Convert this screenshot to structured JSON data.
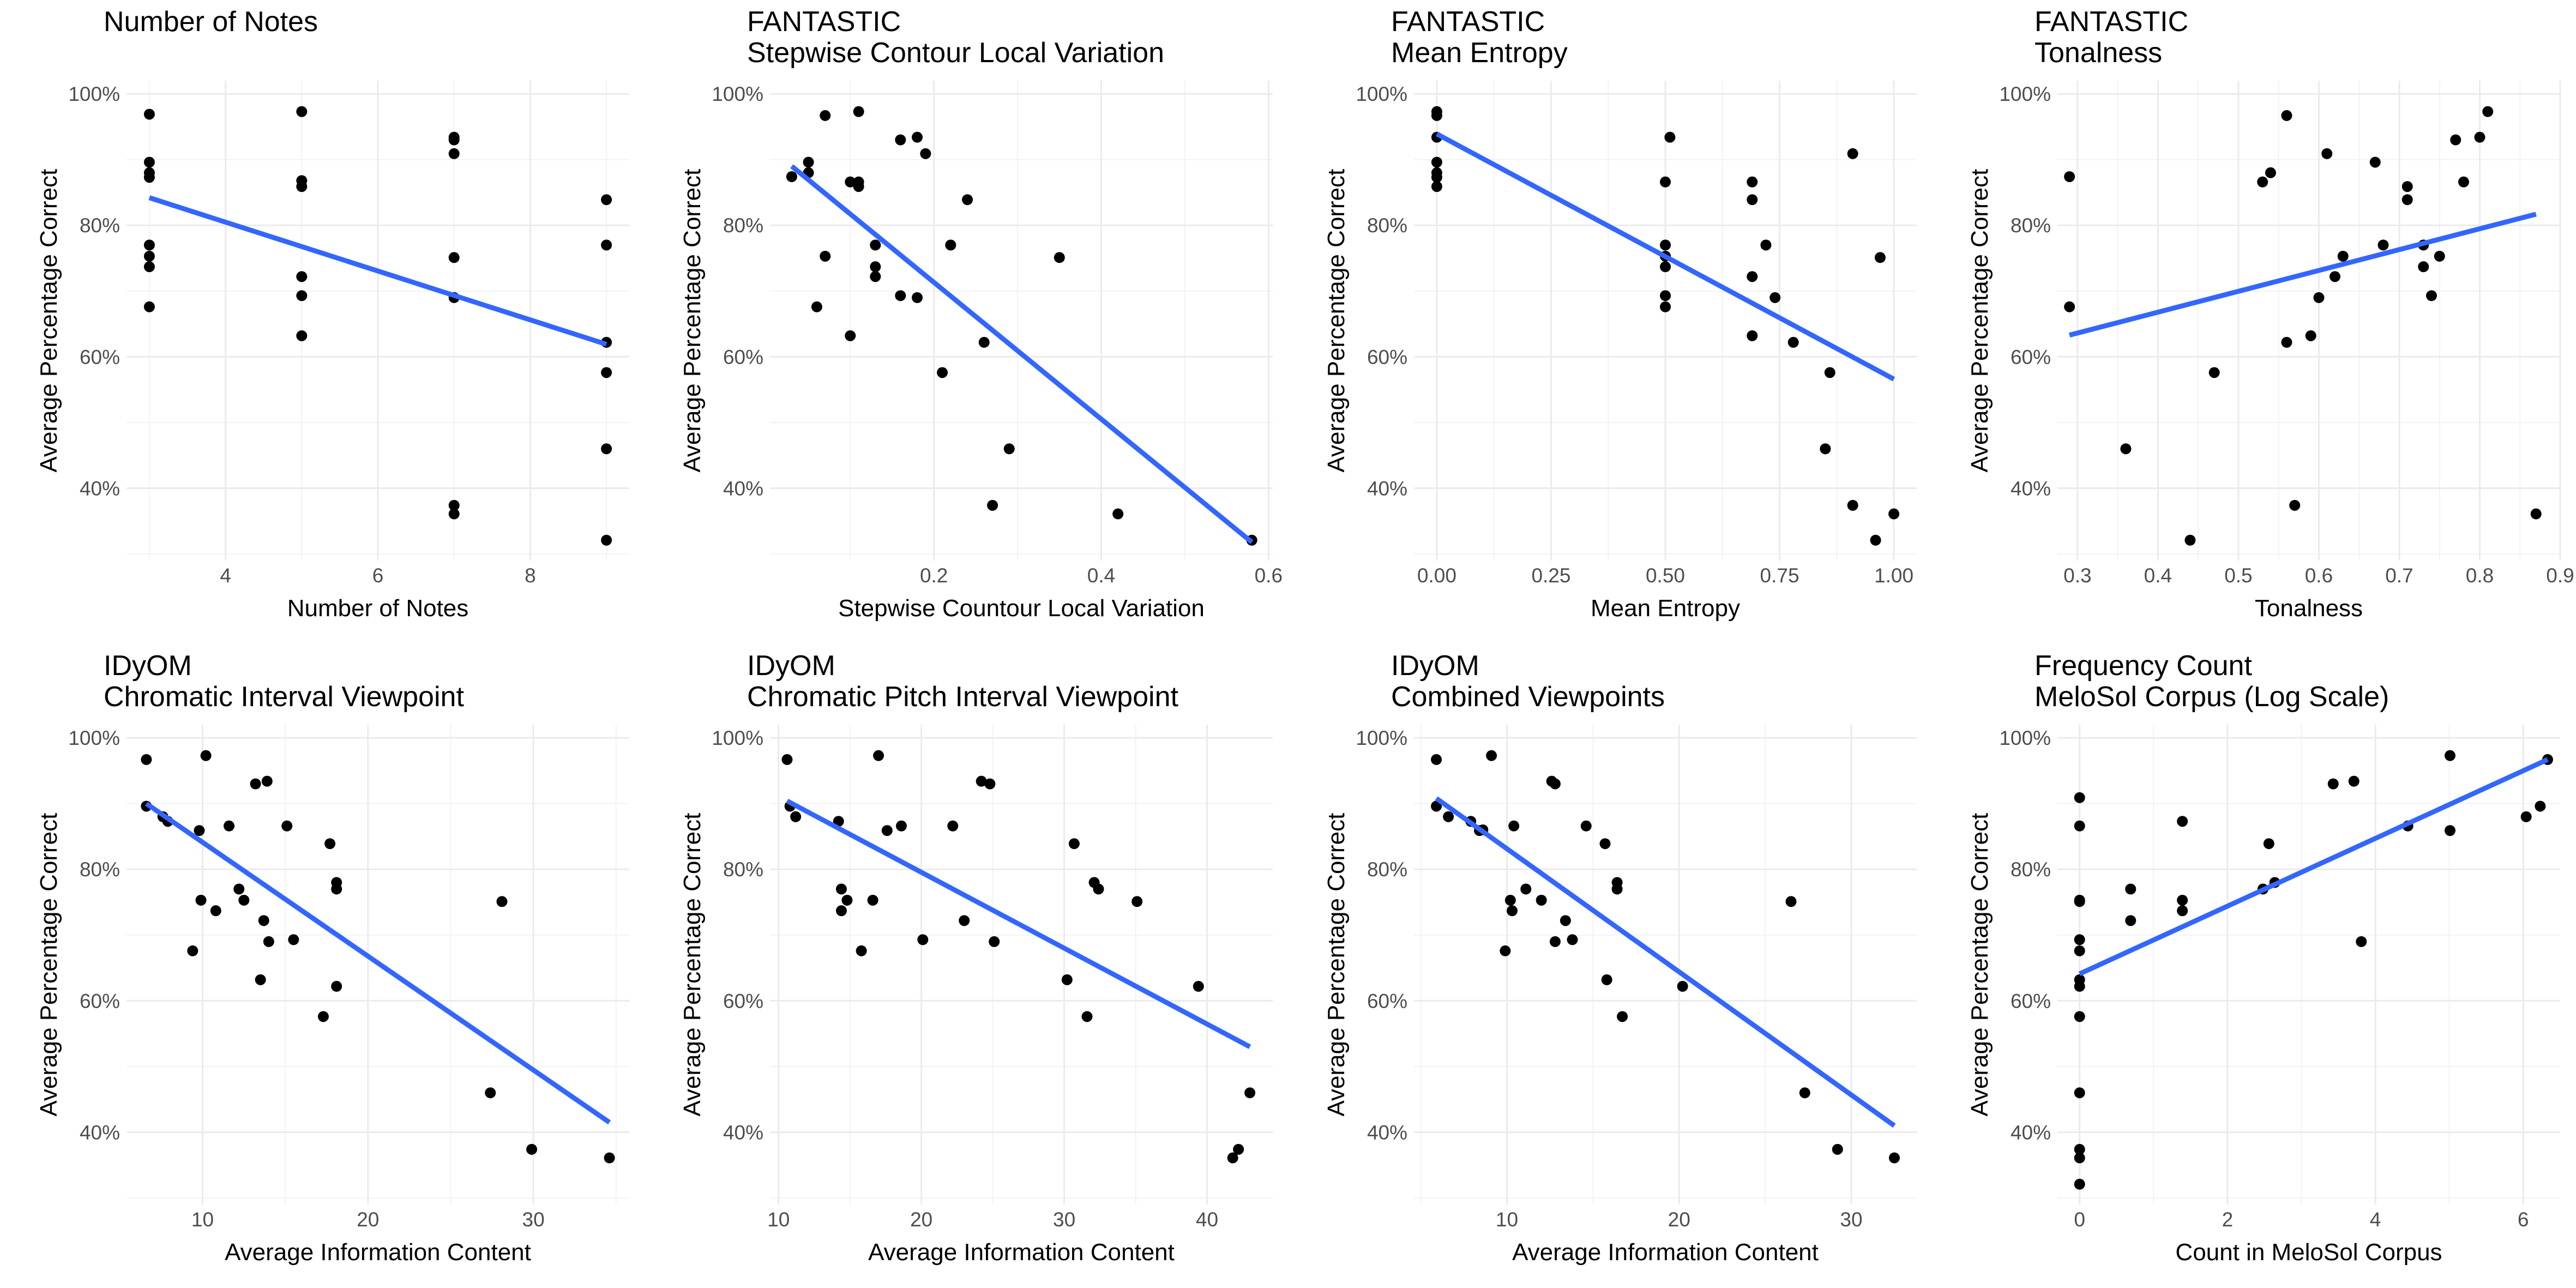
{
  "figure": {
    "y_label": "Average Percentage Correct",
    "y_ticks": [
      "40%",
      "60%",
      "80%",
      "100%"
    ],
    "fit_color": "#3366ff",
    "point_color": "#000000"
  },
  "chart_data": [
    {
      "type": "scatter",
      "title": "Number of Notes",
      "subtitle": "",
      "xlabel": "Number of Notes",
      "ylabel": "Average Percentage Correct",
      "xlim": [
        2.7,
        9.3
      ],
      "ylim": [
        29,
        102
      ],
      "x_ticks": [
        4,
        6,
        8
      ],
      "x_tick_labels": [
        "4",
        "6",
        "8"
      ],
      "y_ticks": [
        40,
        60,
        80,
        100
      ],
      "y_tick_labels": [
        "40%",
        "60%",
        "80%",
        "100%"
      ],
      "fit": {
        "x": [
          3,
          9
        ],
        "y": [
          84.2,
          61.9
        ]
      },
      "points": [
        [
          3,
          96.9
        ],
        [
          3,
          89.6
        ],
        [
          3,
          88.0
        ],
        [
          3,
          87.3
        ],
        [
          3,
          77.0
        ],
        [
          3,
          75.3
        ],
        [
          3,
          73.7
        ],
        [
          3,
          67.6
        ],
        [
          5,
          97.3
        ],
        [
          5,
          86.8
        ],
        [
          5,
          85.9
        ],
        [
          5,
          72.2
        ],
        [
          5,
          69.3
        ],
        [
          5,
          63.2
        ],
        [
          7,
          93.4
        ],
        [
          7,
          93.0
        ],
        [
          7,
          90.9
        ],
        [
          7,
          75.1
        ],
        [
          7,
          69.0
        ],
        [
          7,
          37.4
        ],
        [
          7,
          36.1
        ],
        [
          9,
          83.9
        ],
        [
          9,
          77.0
        ],
        [
          9,
          62.2
        ],
        [
          9,
          57.6
        ],
        [
          9,
          46.0
        ],
        [
          9,
          32.1
        ]
      ]
    },
    {
      "type": "scatter",
      "title": "FANTASTIC",
      "subtitle": "Stepwise Contour Local Variation",
      "xlabel": "Stepwise Countour Local Variation",
      "ylabel": "Average Percentage Correct",
      "xlim": [
        0.004,
        0.605
      ],
      "ylim": [
        29,
        102
      ],
      "x_ticks": [
        0.2,
        0.4,
        0.6
      ],
      "x_tick_labels": [
        "0.2",
        "0.4",
        "0.6"
      ],
      "y_ticks": [
        40,
        60,
        80,
        100
      ],
      "y_tick_labels": [
        "40%",
        "60%",
        "80%",
        "100%"
      ],
      "fit": {
        "x": [
          0.03,
          0.58
        ],
        "y": [
          89.0,
          31.8
        ]
      },
      "points": [
        [
          0.03,
          87.4
        ],
        [
          0.05,
          88.0
        ],
        [
          0.05,
          89.6
        ],
        [
          0.06,
          67.6
        ],
        [
          0.07,
          96.7
        ],
        [
          0.07,
          75.3
        ],
        [
          0.1,
          86.6
        ],
        [
          0.1,
          63.2
        ],
        [
          0.11,
          97.3
        ],
        [
          0.11,
          85.9
        ],
        [
          0.11,
          86.6
        ],
        [
          0.13,
          72.2
        ],
        [
          0.13,
          73.7
        ],
        [
          0.13,
          77.0
        ],
        [
          0.16,
          69.3
        ],
        [
          0.16,
          93.0
        ],
        [
          0.18,
          93.4
        ],
        [
          0.18,
          69.0
        ],
        [
          0.19,
          90.9
        ],
        [
          0.21,
          57.6
        ],
        [
          0.22,
          77.0
        ],
        [
          0.24,
          83.9
        ],
        [
          0.26,
          62.2
        ],
        [
          0.27,
          37.4
        ],
        [
          0.29,
          46.0
        ],
        [
          0.35,
          75.1
        ],
        [
          0.42,
          36.1
        ],
        [
          0.58,
          32.1
        ]
      ]
    },
    {
      "type": "scatter",
      "title": "FANTASTIC",
      "subtitle": "Mean Entropy",
      "xlabel": "Mean Entropy",
      "ylabel": "Average Percentage Correct",
      "xlim": [
        -0.05,
        1.05
      ],
      "ylim": [
        29,
        102
      ],
      "x_ticks": [
        0,
        0.25,
        0.5,
        0.75,
        1
      ],
      "x_tick_labels": [
        "0.00",
        "0.25",
        "0.50",
        "0.75",
        "1.00"
      ],
      "y_ticks": [
        40,
        60,
        80,
        100
      ],
      "y_tick_labels": [
        "40%",
        "60%",
        "80%",
        "100%"
      ],
      "fit": {
        "x": [
          0,
          1
        ],
        "y": [
          93.9,
          56.6
        ]
      },
      "points": [
        [
          0,
          97.3
        ],
        [
          0,
          96.7
        ],
        [
          0,
          93.4
        ],
        [
          0,
          89.6
        ],
        [
          0,
          88.0
        ],
        [
          0,
          87.3
        ],
        [
          0,
          85.9
        ],
        [
          0.5,
          86.6
        ],
        [
          0.5,
          77.0
        ],
        [
          0.5,
          75.3
        ],
        [
          0.5,
          73.7
        ],
        [
          0.5,
          69.3
        ],
        [
          0.5,
          67.6
        ],
        [
          0.51,
          93.4
        ],
        [
          0.69,
          86.6
        ],
        [
          0.69,
          83.9
        ],
        [
          0.69,
          72.2
        ],
        [
          0.69,
          63.2
        ],
        [
          0.72,
          77.0
        ],
        [
          0.74,
          69.0
        ],
        [
          0.78,
          62.2
        ],
        [
          0.85,
          46.0
        ],
        [
          0.86,
          57.6
        ],
        [
          0.91,
          90.9
        ],
        [
          0.91,
          37.4
        ],
        [
          0.96,
          32.1
        ],
        [
          0.97,
          75.1
        ],
        [
          1.0,
          36.1
        ]
      ]
    },
    {
      "type": "scatter",
      "title": "FANTASTIC",
      "subtitle": "Tonalness",
      "xlabel": "Tonalness",
      "ylabel": "Average Percentage Correct",
      "xlim": [
        0.275,
        0.9
      ],
      "ylim": [
        29,
        102
      ],
      "x_ticks": [
        0.3,
        0.4,
        0.5,
        0.6,
        0.7,
        0.8,
        0.9
      ],
      "x_tick_labels": [
        "0.3",
        "0.4",
        "0.5",
        "0.6",
        "0.7",
        "0.8",
        "0.9"
      ],
      "y_ticks": [
        40,
        60,
        80,
        100
      ],
      "y_tick_labels": [
        "40%",
        "60%",
        "80%",
        "100%"
      ],
      "fit": {
        "x": [
          0.29,
          0.87
        ],
        "y": [
          63.3,
          81.7
        ]
      },
      "points": [
        [
          0.29,
          87.4
        ],
        [
          0.29,
          67.6
        ],
        [
          0.36,
          46.0
        ],
        [
          0.44,
          32.1
        ],
        [
          0.47,
          57.6
        ],
        [
          0.53,
          86.6
        ],
        [
          0.54,
          88.0
        ],
        [
          0.56,
          96.7
        ],
        [
          0.56,
          62.2
        ],
        [
          0.57,
          37.4
        ],
        [
          0.59,
          63.2
        ],
        [
          0.6,
          69.0
        ],
        [
          0.61,
          90.9
        ],
        [
          0.62,
          72.2
        ],
        [
          0.63,
          75.3
        ],
        [
          0.67,
          89.6
        ],
        [
          0.68,
          77.0
        ],
        [
          0.71,
          85.9
        ],
        [
          0.71,
          83.9
        ],
        [
          0.73,
          77.0
        ],
        [
          0.73,
          73.7
        ],
        [
          0.74,
          69.3
        ],
        [
          0.75,
          75.3
        ],
        [
          0.77,
          93.0
        ],
        [
          0.78,
          86.6
        ],
        [
          0.8,
          93.4
        ],
        [
          0.81,
          97.3
        ],
        [
          0.87,
          36.1
        ]
      ]
    },
    {
      "type": "scatter",
      "title": "IDyOM",
      "subtitle": "Chromatic Interval Viewpoint",
      "xlabel": "Average Information Content",
      "ylabel": "Average Percentage Correct",
      "xlim": [
        5.4,
        35.8
      ],
      "ylim": [
        29,
        102
      ],
      "x_ticks": [
        10,
        20,
        30
      ],
      "x_tick_labels": [
        "10",
        "20",
        "30"
      ],
      "y_ticks": [
        40,
        60,
        80,
        100
      ],
      "y_tick_labels": [
        "40%",
        "60%",
        "80%",
        "100%"
      ],
      "fit": {
        "x": [
          6.6,
          34.6
        ],
        "y": [
          90.0,
          41.5
        ]
      },
      "points": [
        [
          6.6,
          96.7
        ],
        [
          6.6,
          89.6
        ],
        [
          7.6,
          88.0
        ],
        [
          7.9,
          87.3
        ],
        [
          9.4,
          67.6
        ],
        [
          9.8,
          85.9
        ],
        [
          9.9,
          75.3
        ],
        [
          10.2,
          97.3
        ],
        [
          10.8,
          73.7
        ],
        [
          11.6,
          86.6
        ],
        [
          12.2,
          77.0
        ],
        [
          12.5,
          75.3
        ],
        [
          13.2,
          93.0
        ],
        [
          13.5,
          63.2
        ],
        [
          13.7,
          72.2
        ],
        [
          13.9,
          93.4
        ],
        [
          14.0,
          69.0
        ],
        [
          15.1,
          86.6
        ],
        [
          15.5,
          69.3
        ],
        [
          17.3,
          57.6
        ],
        [
          17.7,
          83.9
        ],
        [
          18.1,
          62.2
        ],
        [
          18.1,
          78.0
        ],
        [
          18.1,
          77.0
        ],
        [
          27.4,
          46.0
        ],
        [
          28.1,
          75.1
        ],
        [
          29.9,
          37.4
        ],
        [
          34.6,
          36.1
        ]
      ]
    },
    {
      "type": "scatter",
      "title": "IDyOM",
      "subtitle": "Chromatic Pitch Interval Viewpoint",
      "xlabel": "Average Information Content",
      "ylabel": "Average Percentage Correct",
      "xlim": [
        9.4,
        44.6
      ],
      "ylim": [
        29,
        102
      ],
      "x_ticks": [
        10,
        20,
        30,
        40
      ],
      "x_tick_labels": [
        "10",
        "20",
        "30",
        "40"
      ],
      "y_ticks": [
        40,
        60,
        80,
        100
      ],
      "y_tick_labels": [
        "40%",
        "60%",
        "80%",
        "100%"
      ],
      "fit": {
        "x": [
          10.6,
          43.0
        ],
        "y": [
          90.4,
          53.0
        ]
      },
      "points": [
        [
          10.6,
          96.7
        ],
        [
          10.8,
          89.6
        ],
        [
          11.2,
          88.0
        ],
        [
          14.2,
          87.3
        ],
        [
          14.4,
          77.0
        ],
        [
          14.4,
          73.7
        ],
        [
          14.8,
          75.3
        ],
        [
          15.8,
          67.6
        ],
        [
          16.6,
          75.3
        ],
        [
          17.0,
          97.3
        ],
        [
          17.6,
          85.9
        ],
        [
          18.6,
          86.6
        ],
        [
          20.1,
          69.3
        ],
        [
          22.2,
          86.6
        ],
        [
          23.0,
          72.2
        ],
        [
          24.2,
          93.4
        ],
        [
          24.8,
          93.0
        ],
        [
          25.1,
          69.0
        ],
        [
          30.2,
          63.2
        ],
        [
          30.7,
          83.9
        ],
        [
          31.6,
          57.6
        ],
        [
          32.1,
          78.0
        ],
        [
          32.4,
          77.0
        ],
        [
          35.1,
          75.1
        ],
        [
          39.4,
          62.2
        ],
        [
          41.8,
          36.1
        ],
        [
          42.2,
          37.4
        ],
        [
          43.0,
          46.0
        ]
      ]
    },
    {
      "type": "scatter",
      "title": "IDyOM",
      "subtitle": "Combined Viewpoints",
      "xlabel": "Average Information Content",
      "ylabel": "Average Percentage Correct",
      "xlim": [
        4.6,
        33.8
      ],
      "ylim": [
        29,
        102
      ],
      "x_ticks": [
        10,
        20,
        30
      ],
      "x_tick_labels": [
        "10",
        "20",
        "30"
      ],
      "y_ticks": [
        40,
        60,
        80,
        100
      ],
      "y_tick_labels": [
        "40%",
        "60%",
        "80%",
        "100%"
      ],
      "fit": {
        "x": [
          5.9,
          32.5
        ],
        "y": [
          90.8,
          41.0
        ]
      },
      "points": [
        [
          5.9,
          96.7
        ],
        [
          5.9,
          89.6
        ],
        [
          6.6,
          88.0
        ],
        [
          7.9,
          87.3
        ],
        [
          8.4,
          85.9
        ],
        [
          8.6,
          86.0
        ],
        [
          9.1,
          97.3
        ],
        [
          9.9,
          67.6
        ],
        [
          10.2,
          75.3
        ],
        [
          10.3,
          73.7
        ],
        [
          10.4,
          86.6
        ],
        [
          11.1,
          77.0
        ],
        [
          12.0,
          75.3
        ],
        [
          12.6,
          93.4
        ],
        [
          12.8,
          93.0
        ],
        [
          12.8,
          69.0
        ],
        [
          13.4,
          72.2
        ],
        [
          13.8,
          69.3
        ],
        [
          14.6,
          86.6
        ],
        [
          15.7,
          83.9
        ],
        [
          15.8,
          63.2
        ],
        [
          16.4,
          78.0
        ],
        [
          16.4,
          77.0
        ],
        [
          16.7,
          57.6
        ],
        [
          20.2,
          62.2
        ],
        [
          26.5,
          75.1
        ],
        [
          27.3,
          46.0
        ],
        [
          29.2,
          37.4
        ],
        [
          32.5,
          36.1
        ]
      ]
    },
    {
      "type": "scatter",
      "title": "Frequency Count",
      "subtitle": "MeloSol Corpus (Log Scale)",
      "xlabel": "Count in MeloSol Corpus",
      "ylabel": "Average Percentage Correct",
      "xlim": [
        -0.3,
        6.5
      ],
      "ylim": [
        29,
        102
      ],
      "x_ticks": [
        0,
        2,
        4,
        6
      ],
      "x_tick_labels": [
        "0",
        "2",
        "4",
        "6"
      ],
      "y_ticks": [
        40,
        60,
        80,
        100
      ],
      "y_tick_labels": [
        "40%",
        "60%",
        "80%",
        "100%"
      ],
      "fit": {
        "x": [
          0,
          6.33
        ],
        "y": [
          64.1,
          96.7
        ]
      },
      "points": [
        [
          0,
          90.9
        ],
        [
          0,
          86.6
        ],
        [
          0,
          75.3
        ],
        [
          0,
          75.1
        ],
        [
          0,
          69.3
        ],
        [
          0,
          67.6
        ],
        [
          0,
          63.2
        ],
        [
          0,
          62.2
        ],
        [
          0,
          57.6
        ],
        [
          0,
          46.0
        ],
        [
          0,
          37.4
        ],
        [
          0,
          36.1
        ],
        [
          0,
          32.1
        ],
        [
          0.69,
          77.0
        ],
        [
          0.69,
          72.2
        ],
        [
          1.39,
          87.3
        ],
        [
          1.39,
          75.3
        ],
        [
          1.39,
          73.7
        ],
        [
          2.48,
          77.0
        ],
        [
          2.56,
          83.9
        ],
        [
          2.64,
          78.0
        ],
        [
          3.43,
          93.0
        ],
        [
          3.71,
          93.4
        ],
        [
          3.81,
          69.0
        ],
        [
          4.44,
          86.6
        ],
        [
          5.01,
          97.3
        ],
        [
          5.01,
          85.9
        ],
        [
          6.04,
          88.0
        ],
        [
          6.23,
          89.6
        ],
        [
          6.33,
          96.7
        ]
      ]
    }
  ]
}
